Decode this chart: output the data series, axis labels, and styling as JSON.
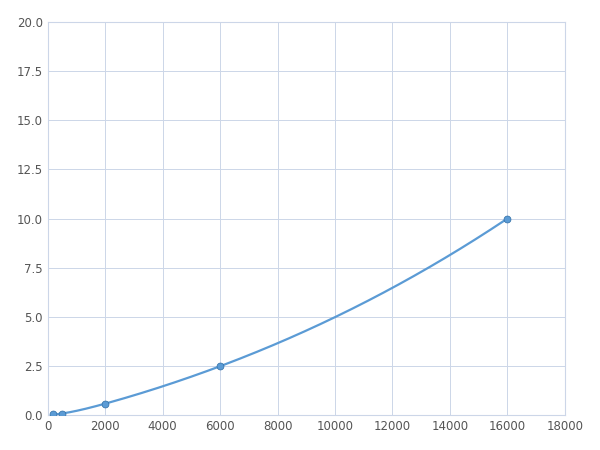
{
  "x_points": [
    200,
    500,
    2000,
    6000,
    16000
  ],
  "y_points": [
    0.05,
    0.1,
    0.6,
    2.5,
    10.0
  ],
  "line_color": "#5b9bd5",
  "marker_color": "#5b9bd5",
  "marker_size": 5,
  "marker_edge_color": "#2e6da4",
  "xlim": [
    0,
    18000
  ],
  "ylim": [
    0,
    20
  ],
  "xticks": [
    0,
    2000,
    4000,
    6000,
    8000,
    10000,
    12000,
    14000,
    16000,
    18000
  ],
  "yticks": [
    0.0,
    2.5,
    5.0,
    7.5,
    10.0,
    12.5,
    15.0,
    17.5,
    20.0
  ],
  "grid_color": "#ccd6e8",
  "background_color": "#ffffff",
  "line_width": 1.6,
  "fig_width": 6.0,
  "fig_height": 4.5,
  "dpi": 100
}
